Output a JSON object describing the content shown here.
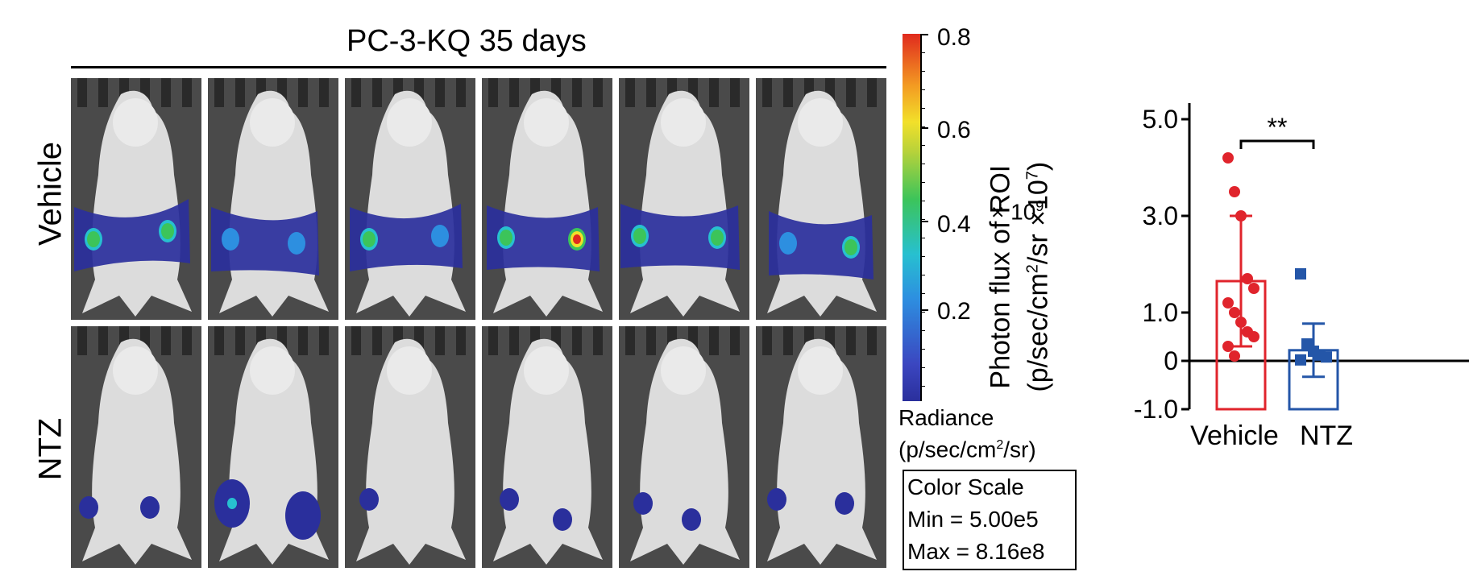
{
  "figure": {
    "title": "PC-3-KQ  35 days",
    "row_labels": [
      "Vehicle",
      "NTZ"
    ],
    "colorbar": {
      "ticks": [
        "0.8",
        "0.6",
        "0.4",
        "0.2"
      ],
      "multiplier": "× 10",
      "multiplier_exp": "9",
      "colors": [
        "#2a2f9c",
        "#2d8fe0",
        "#27c0d0",
        "#3cc45a",
        "#f2e02a",
        "#e02a1e"
      ]
    },
    "radiance": {
      "line1": "Radiance",
      "line2_a": "(p/sec/cm",
      "line2_sup": "2",
      "line2_b": "/sr)"
    },
    "color_scale": {
      "header": "Color Scale",
      "min": "Min = 5.00e5",
      "max": "Max = 8.16e8"
    }
  },
  "chart_data": {
    "type": "bar",
    "categories": [
      "Vehicle",
      "NTZ"
    ],
    "ylabel_line1": "Photon flux of ROI",
    "ylabel_line2_a": "(p/sec/cm",
    "ylabel_line2_sup1": "2",
    "ylabel_line2_b": "/sr ×10",
    "ylabel_line2_sup2": "7",
    "ylabel_line2_c": ")",
    "ylim": [
      -1.0,
      5.0
    ],
    "yticks": [
      "5.0",
      "3.0",
      "1.0",
      "0",
      "-1.0"
    ],
    "ytick_values": [
      5.0,
      3.0,
      1.0,
      0,
      -1.0
    ],
    "series": [
      {
        "name": "Vehicle",
        "mean": 1.65,
        "sd": 1.35,
        "color": "#e0242c",
        "points": [
          4.2,
          3.5,
          3.0,
          1.7,
          1.5,
          1.2,
          1.0,
          0.8,
          0.6,
          0.5,
          0.3,
          0.1
        ]
      },
      {
        "name": "NTZ",
        "mean": 0.22,
        "sd": 0.55,
        "color": "#2456a8",
        "points": [
          1.8,
          0.35,
          0.2,
          0.12,
          0.08,
          0.02
        ]
      }
    ],
    "significance": "**"
  }
}
